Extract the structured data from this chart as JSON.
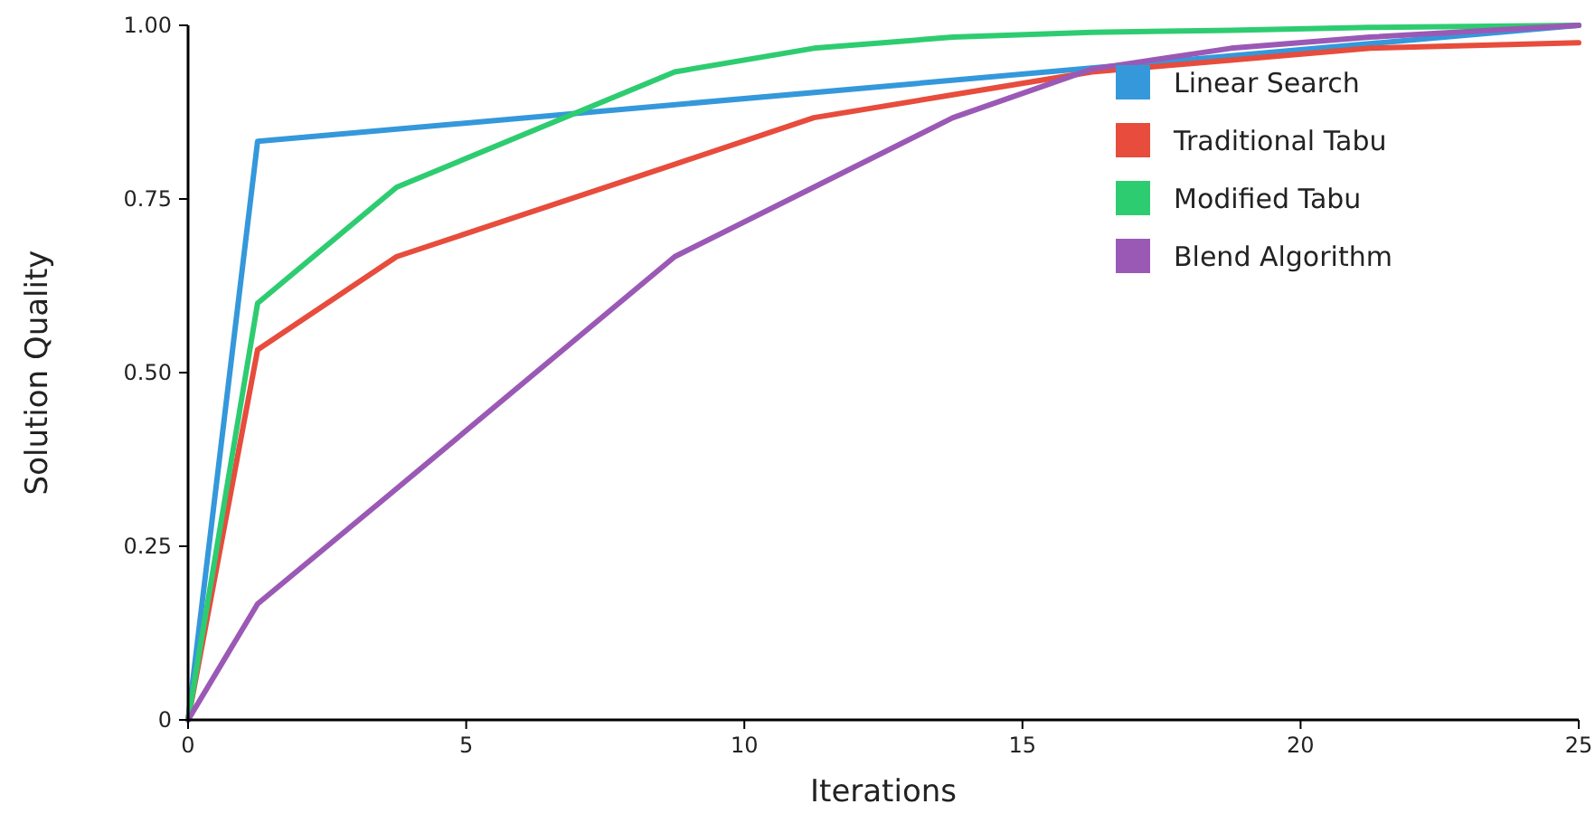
{
  "chart_data": {
    "type": "line",
    "xlabel": "Iterations",
    "ylabel": "Solution Quality",
    "xlim": [
      0,
      25
    ],
    "ylim": [
      0,
      1
    ],
    "xticks": [
      0,
      5,
      10,
      15,
      20,
      25
    ],
    "yticks": [
      {
        "value": 0,
        "label": "0"
      },
      {
        "value": 0.25,
        "label": "0.25"
      },
      {
        "value": 0.5,
        "label": "0.50"
      },
      {
        "value": 0.75,
        "label": "0.75"
      },
      {
        "value": 1,
        "label": "1.00"
      }
    ],
    "x": [
      0,
      1.25,
      3.75,
      8.75,
      11.25,
      13.75,
      16.25,
      18.75,
      21.25,
      25
    ],
    "series": [
      {
        "name": "Linear Search",
        "color": "#3498db",
        "x": [
          0,
          1.25,
          25
        ],
        "values": [
          0,
          0.833,
          1
        ]
      },
      {
        "name": "Traditional Tabu",
        "color": "#e74c3c",
        "values": [
          0,
          0.533,
          0.667,
          0.8,
          0.867,
          0.9,
          0.933,
          0.95,
          0.967,
          0.975
        ]
      },
      {
        "name": "Modified Tabu",
        "color": "#2ecc71",
        "values": [
          0,
          0.6,
          0.767,
          0.933,
          0.967,
          0.983,
          0.99,
          0.993,
          0.997,
          1
        ]
      },
      {
        "name": "Blend Algorithm",
        "color": "#9b59b6",
        "values": [
          0,
          0.167,
          0.333,
          0.667,
          0.767,
          0.867,
          0.937,
          0.967,
          0.983,
          1
        ]
      }
    ],
    "legend": "top right",
    "grid": false,
    "marker": "none",
    "line_style": "solid"
  }
}
